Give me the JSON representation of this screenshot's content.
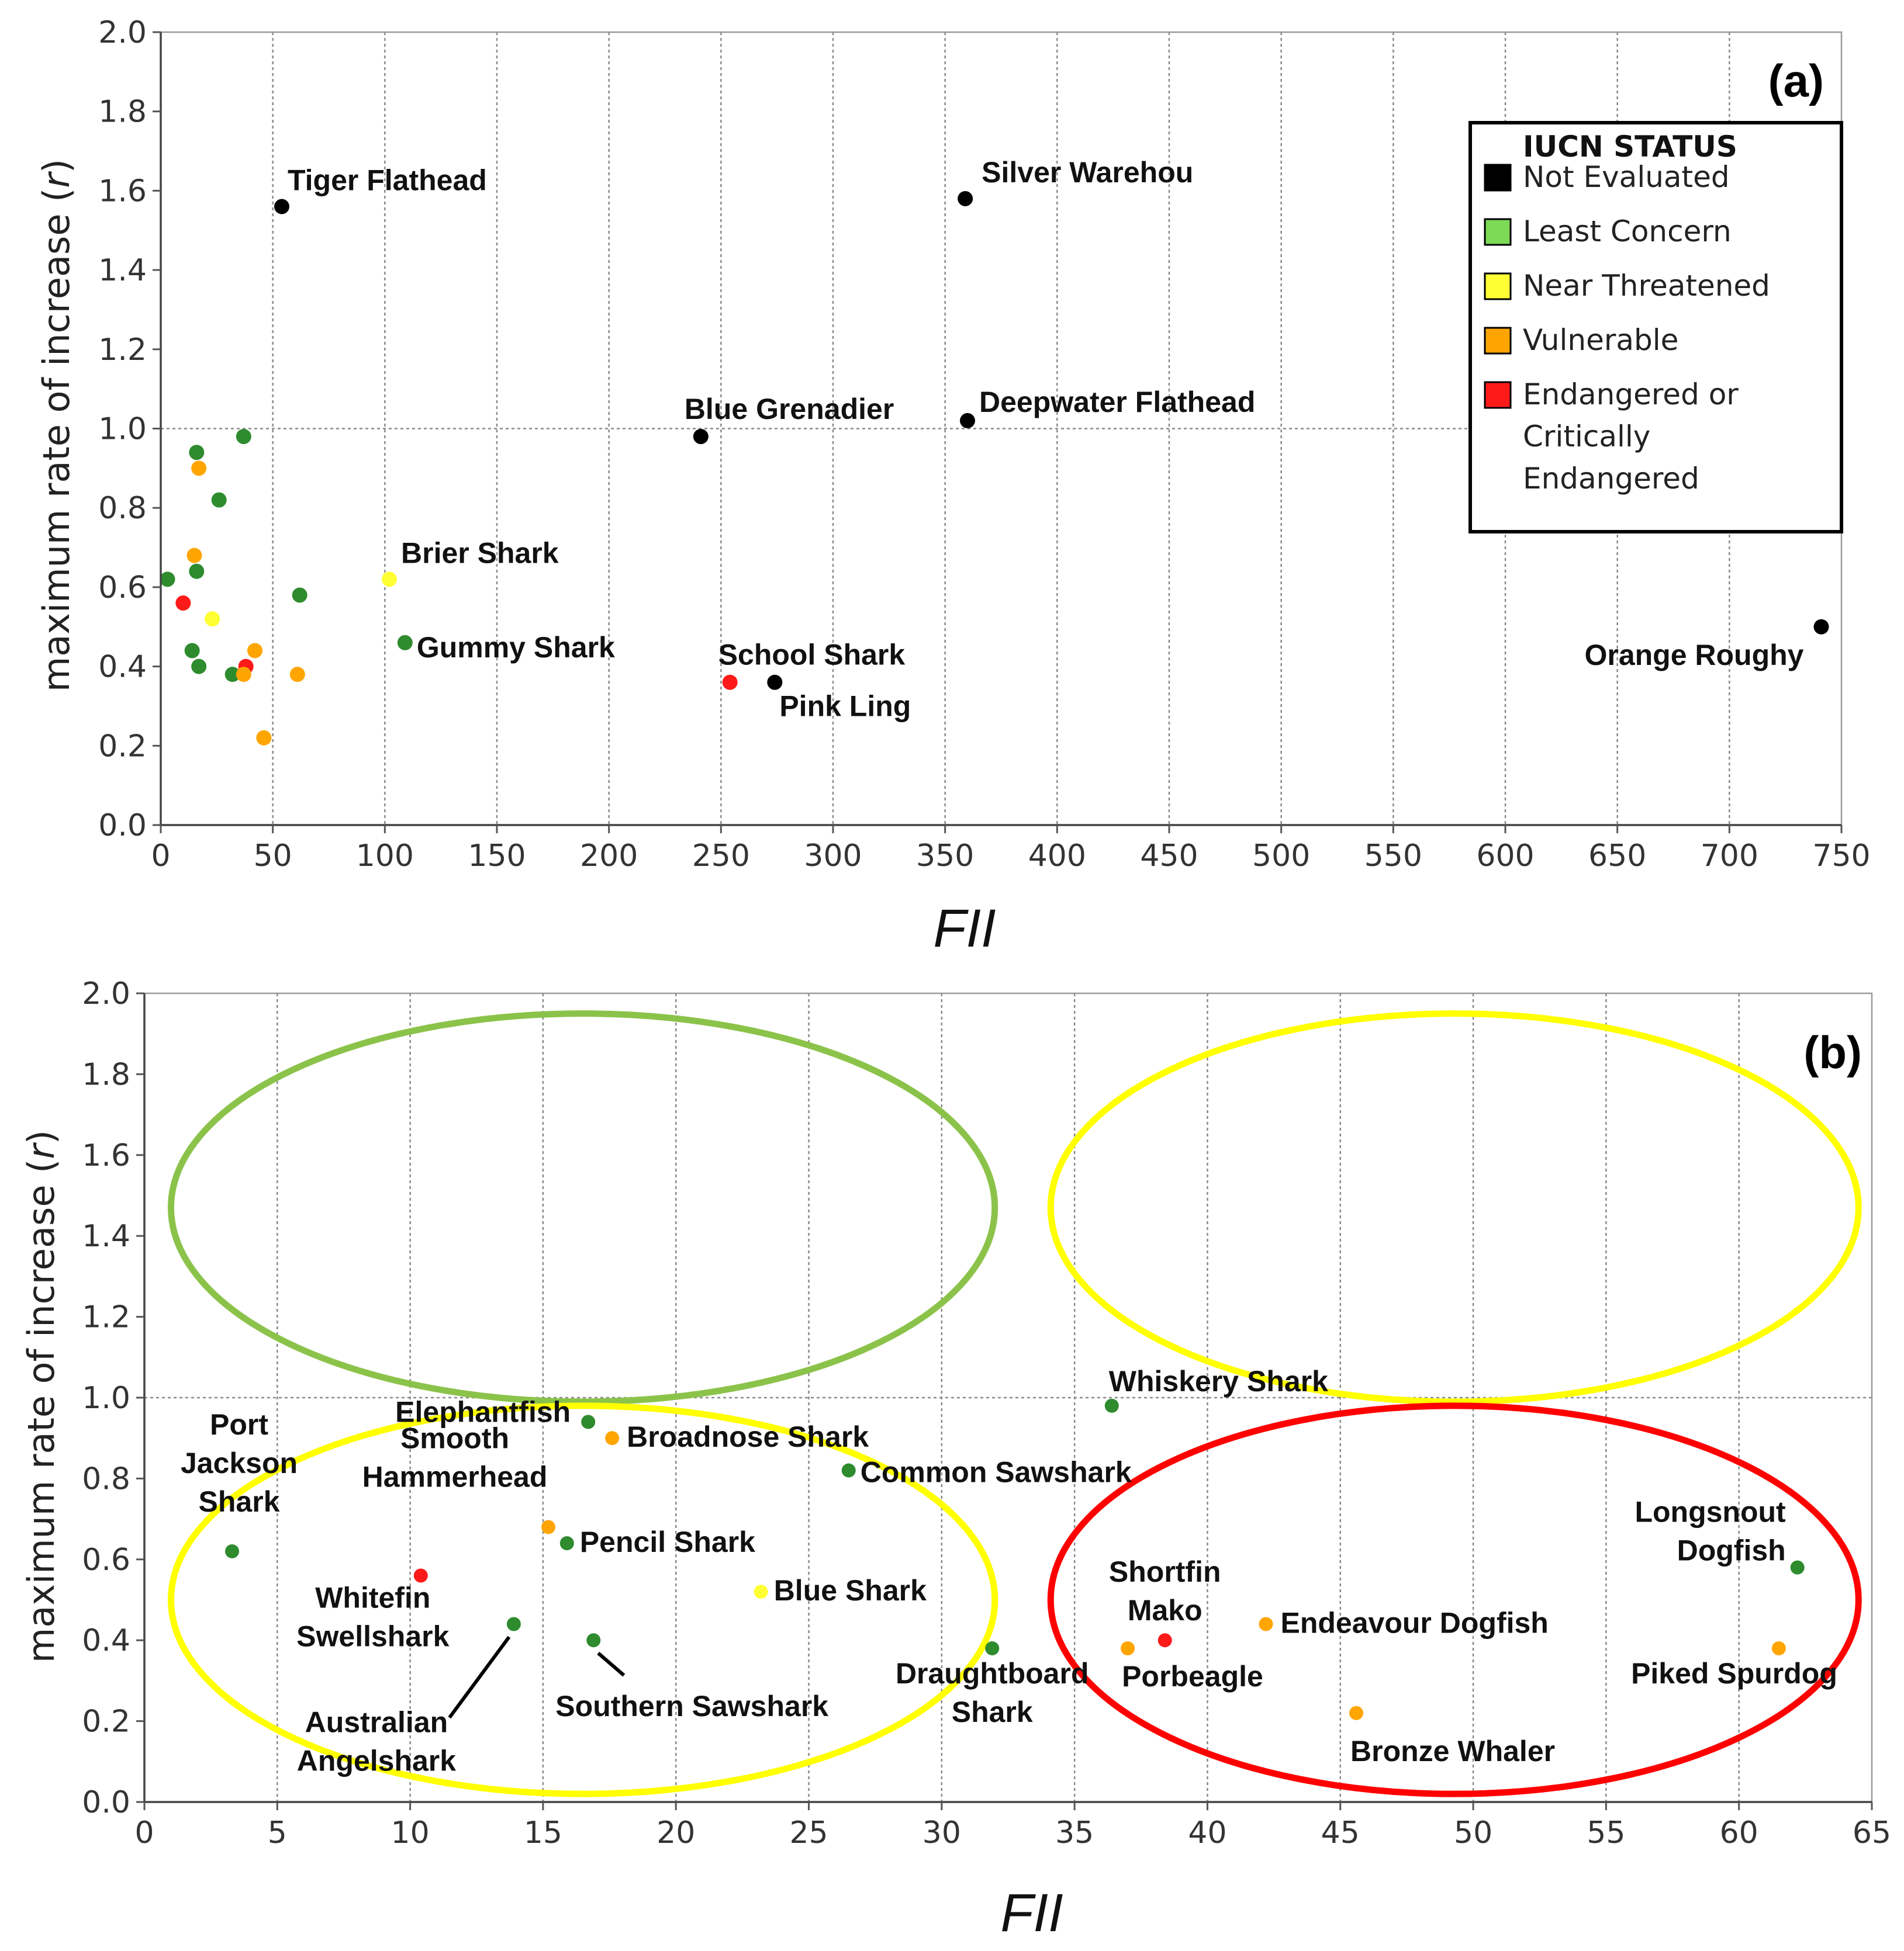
{
  "colors": {
    "not_evaluated": "#000000",
    "least_concern": "#2e8b2e",
    "near_threatened": "#ffff33",
    "vulnerable": "#ffa500",
    "endangered": "#ff1a1a",
    "legend_least_concern": "#7ed957",
    "legend_near_threatened": "#ffff33",
    "legend_vulnerable": "#ffa500",
    "legend_endangered": "#ff1a1a",
    "ellipse_green": "#8bc34a",
    "ellipse_yellow": "#ffff00",
    "ellipse_red": "#ff0000"
  },
  "legend": {
    "title": "IUCN STATUS",
    "items": [
      {
        "key": "not_evaluated",
        "label_lines": [
          "Not Evaluated"
        ]
      },
      {
        "key": "least_concern",
        "label_lines": [
          "Least Concern"
        ]
      },
      {
        "key": "near_threatened",
        "label_lines": [
          "Near Threatened"
        ]
      },
      {
        "key": "vulnerable",
        "label_lines": [
          "Vulnerable"
        ]
      },
      {
        "key": "endangered",
        "label_lines": [
          "Endangered or",
          "Critically",
          "Endangered"
        ]
      }
    ]
  },
  "chart_data": [
    {
      "type": "scatter",
      "panel_label": "(a)",
      "xlabel": "FII",
      "ylabel_main": "maximum rate of increase (",
      "ylabel_var": "r",
      "ylabel_end": ")",
      "xlim": [
        0,
        750
      ],
      "ylim": [
        0.0,
        2.0
      ],
      "xticks": [
        "0",
        "50",
        "100",
        "150",
        "200",
        "250",
        "300",
        "350",
        "400",
        "450",
        "500",
        "550",
        "600",
        "650",
        "700",
        "750"
      ],
      "yticks": [
        "0.0",
        "0.2",
        "0.4",
        "0.6",
        "0.8",
        "1.0",
        "1.2",
        "1.4",
        "1.6",
        "1.8",
        "2.0"
      ],
      "hline": 1.0,
      "points": [
        {
          "x": 54,
          "y": 1.56,
          "status": "not_evaluated",
          "label": "Tiger Flathead"
        },
        {
          "x": 359,
          "y": 1.58,
          "status": "not_evaluated",
          "label": "Silver Warehou"
        },
        {
          "x": 241,
          "y": 0.98,
          "status": "not_evaluated",
          "label": "Blue Grenadier"
        },
        {
          "x": 360,
          "y": 1.02,
          "status": "not_evaluated",
          "label": "Deepwater Flathead"
        },
        {
          "x": 102,
          "y": 0.62,
          "status": "near_threatened",
          "label": "Brier Shark"
        },
        {
          "x": 109,
          "y": 0.46,
          "status": "least_concern",
          "label": "Gummy Shark"
        },
        {
          "x": 254,
          "y": 0.36,
          "status": "endangered",
          "label": "School Shark"
        },
        {
          "x": 274,
          "y": 0.36,
          "status": "not_evaluated",
          "label": "Pink Ling"
        },
        {
          "x": 741,
          "y": 0.5,
          "status": "not_evaluated",
          "label": "Orange Roughy"
        },
        {
          "x": 16,
          "y": 0.94,
          "status": "least_concern"
        },
        {
          "x": 37,
          "y": 0.98,
          "status": "least_concern"
        },
        {
          "x": 17,
          "y": 0.9,
          "status": "vulnerable"
        },
        {
          "x": 26,
          "y": 0.82,
          "status": "least_concern"
        },
        {
          "x": 15,
          "y": 0.68,
          "status": "vulnerable"
        },
        {
          "x": 16,
          "y": 0.64,
          "status": "least_concern"
        },
        {
          "x": 3,
          "y": 0.62,
          "status": "least_concern"
        },
        {
          "x": 62,
          "y": 0.58,
          "status": "least_concern"
        },
        {
          "x": 10,
          "y": 0.56,
          "status": "endangered"
        },
        {
          "x": 23,
          "y": 0.52,
          "status": "near_threatened"
        },
        {
          "x": 14,
          "y": 0.44,
          "status": "least_concern"
        },
        {
          "x": 42,
          "y": 0.44,
          "status": "vulnerable"
        },
        {
          "x": 17,
          "y": 0.4,
          "status": "least_concern"
        },
        {
          "x": 38,
          "y": 0.4,
          "status": "endangered"
        },
        {
          "x": 32,
          "y": 0.38,
          "status": "least_concern"
        },
        {
          "x": 37,
          "y": 0.38,
          "status": "vulnerable"
        },
        {
          "x": 61,
          "y": 0.38,
          "status": "vulnerable"
        },
        {
          "x": 46,
          "y": 0.22,
          "status": "vulnerable"
        }
      ]
    },
    {
      "type": "scatter",
      "panel_label": "(b)",
      "xlabel": "FII",
      "ylabel_main": "maximum rate of increase (",
      "ylabel_var": "r",
      "ylabel_end": ")",
      "xlim": [
        0,
        65
      ],
      "ylim": [
        0.0,
        2.0
      ],
      "xticks": [
        "0",
        "5",
        "10",
        "15",
        "20",
        "25",
        "30",
        "35",
        "40",
        "45",
        "50",
        "55",
        "60",
        "65"
      ],
      "yticks": [
        "0.0",
        "0.2",
        "0.4",
        "0.6",
        "0.8",
        "1.0",
        "1.2",
        "1.4",
        "1.6",
        "1.8",
        "2.0"
      ],
      "hline": 1.0,
      "points": [
        {
          "x": 3.3,
          "y": 0.62,
          "status": "least_concern",
          "label_lines": [
            "Port",
            "Jackson",
            "Shark"
          ]
        },
        {
          "x": 16.7,
          "y": 0.94,
          "status": "least_concern",
          "label_lines": [
            "Elephantfish"
          ]
        },
        {
          "x": 17.6,
          "y": 0.9,
          "status": "vulnerable",
          "label_lines": [
            "Broadnose Shark"
          ]
        },
        {
          "x": 26.5,
          "y": 0.82,
          "status": "least_concern",
          "label_lines": [
            "Common Sawshark"
          ]
        },
        {
          "x": 15.2,
          "y": 0.68,
          "status": "vulnerable",
          "label_lines": [
            "Smooth",
            "Hammerhead"
          ]
        },
        {
          "x": 15.9,
          "y": 0.64,
          "status": "least_concern",
          "label_lines": [
            "Pencil Shark"
          ]
        },
        {
          "x": 10.4,
          "y": 0.56,
          "status": "endangered",
          "label_lines": [
            "Whitefin",
            "Swellshark"
          ]
        },
        {
          "x": 23.2,
          "y": 0.52,
          "status": "near_threatened",
          "label_lines": [
            "Blue Shark"
          ]
        },
        {
          "x": 13.9,
          "y": 0.44,
          "status": "least_concern",
          "label_lines": [
            "Australian",
            "Angelshark"
          ]
        },
        {
          "x": 16.9,
          "y": 0.4,
          "status": "least_concern",
          "label_lines": [
            "Southern Sawshark"
          ]
        },
        {
          "x": 36.4,
          "y": 0.98,
          "status": "least_concern",
          "label_lines": [
            "Whiskery Shark"
          ]
        },
        {
          "x": 31.9,
          "y": 0.38,
          "status": "least_concern",
          "label_lines": [
            "Draughtboard",
            "Shark"
          ]
        },
        {
          "x": 38.4,
          "y": 0.4,
          "status": "endangered",
          "label_lines": [
            "Shortfin",
            "Mako"
          ]
        },
        {
          "x": 37.0,
          "y": 0.38,
          "status": "vulnerable",
          "label_lines": [
            "Porbeagle"
          ]
        },
        {
          "x": 42.2,
          "y": 0.44,
          "status": "vulnerable",
          "label_lines": [
            "Endeavour Dogfish"
          ]
        },
        {
          "x": 45.6,
          "y": 0.22,
          "status": "vulnerable",
          "label_lines": [
            "Bronze Whaler"
          ]
        },
        {
          "x": 62.2,
          "y": 0.58,
          "status": "least_concern",
          "label_lines": [
            "Longsnout",
            "Dogfish"
          ]
        },
        {
          "x": 61.5,
          "y": 0.38,
          "status": "vulnerable",
          "label_lines": [
            "Piked Spurdog"
          ]
        }
      ],
      "ellipses": [
        {
          "color": "ellipse_green",
          "cx": 16.5,
          "cy": 1.47,
          "rx": 15.5,
          "ry": 0.48
        },
        {
          "color": "ellipse_yellow",
          "cx": 49.3,
          "cy": 1.47,
          "rx": 15.2,
          "ry": 0.48
        },
        {
          "color": "ellipse_yellow",
          "cx": 16.5,
          "cy": 0.5,
          "rx": 15.5,
          "ry": 0.48
        },
        {
          "color": "ellipse_red",
          "cx": 49.3,
          "cy": 0.5,
          "rx": 15.2,
          "ry": 0.48
        }
      ]
    }
  ]
}
